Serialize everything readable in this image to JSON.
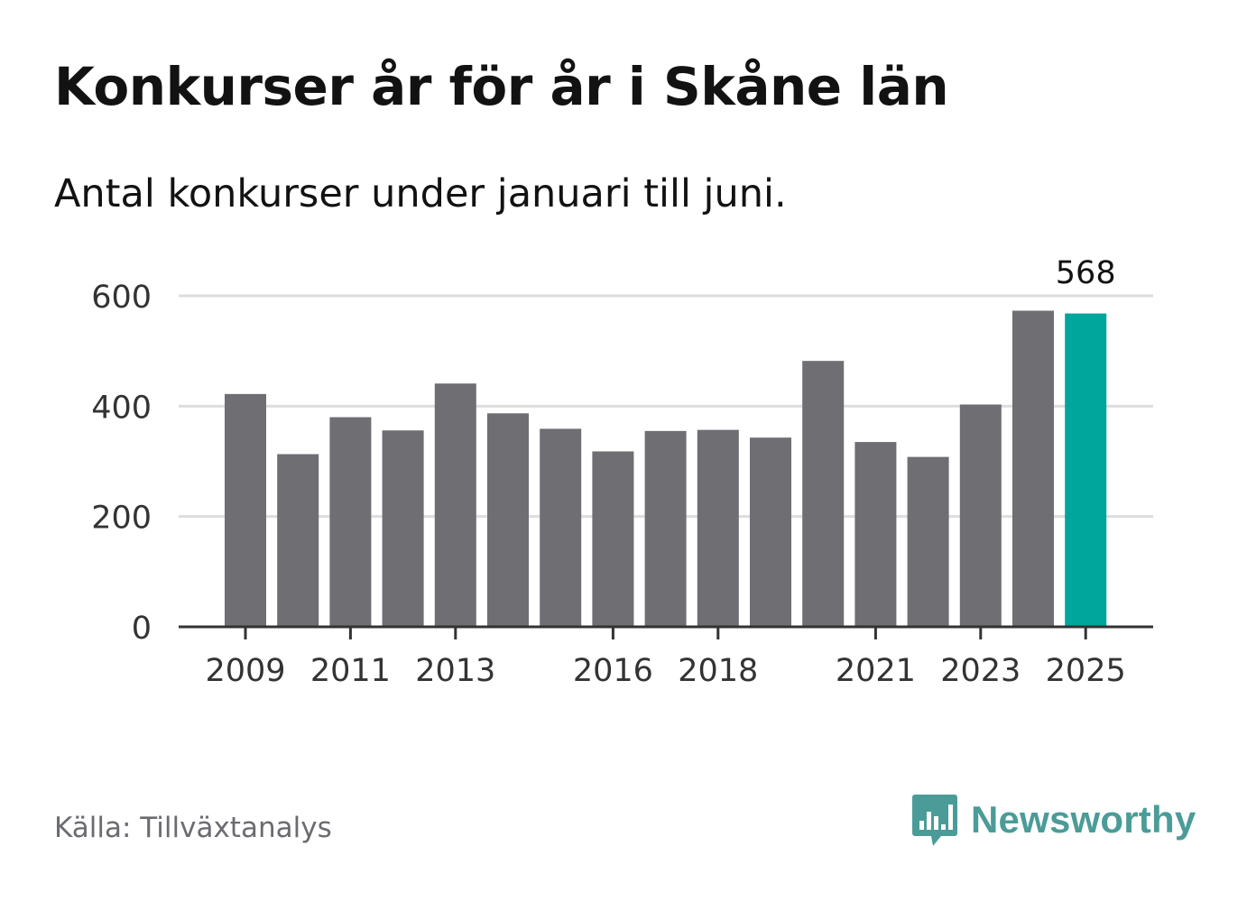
{
  "title": "Konkurser år för år i Skåne län",
  "subtitle": "Antal konkurser under januari till juni.",
  "source": "Källa: Tillväxtanalys",
  "brand": {
    "name": "Newsworthy",
    "logo_icon": "bar-chart-speech-bubble-icon",
    "color": "#4b9c98"
  },
  "colors": {
    "bar": "#6e6e73",
    "highlight": "#00a59b",
    "grid": "#dddddd",
    "axis": "#333333"
  },
  "chart_data": {
    "type": "bar",
    "categories": [
      "2009",
      "2010",
      "2011",
      "2012",
      "2013",
      "2014",
      "2015",
      "2016",
      "2017",
      "2018",
      "2019",
      "2020",
      "2021",
      "2022",
      "2023",
      "2024",
      "2025"
    ],
    "values": [
      422,
      313,
      380,
      356,
      441,
      387,
      359,
      318,
      355,
      357,
      343,
      482,
      335,
      308,
      403,
      573,
      568
    ],
    "xtick_labels": [
      "2009",
      "2011",
      "2013",
      "2016",
      "2018",
      "2021",
      "2023",
      "2025"
    ],
    "yticks": [
      0,
      200,
      400,
      600
    ],
    "ylim": [
      0,
      600
    ],
    "highlight_category": "2025",
    "data_labels": [
      {
        "category": "2025",
        "text": "568"
      }
    ],
    "grid": true,
    "legend": "none",
    "xlabel": "",
    "ylabel": ""
  }
}
